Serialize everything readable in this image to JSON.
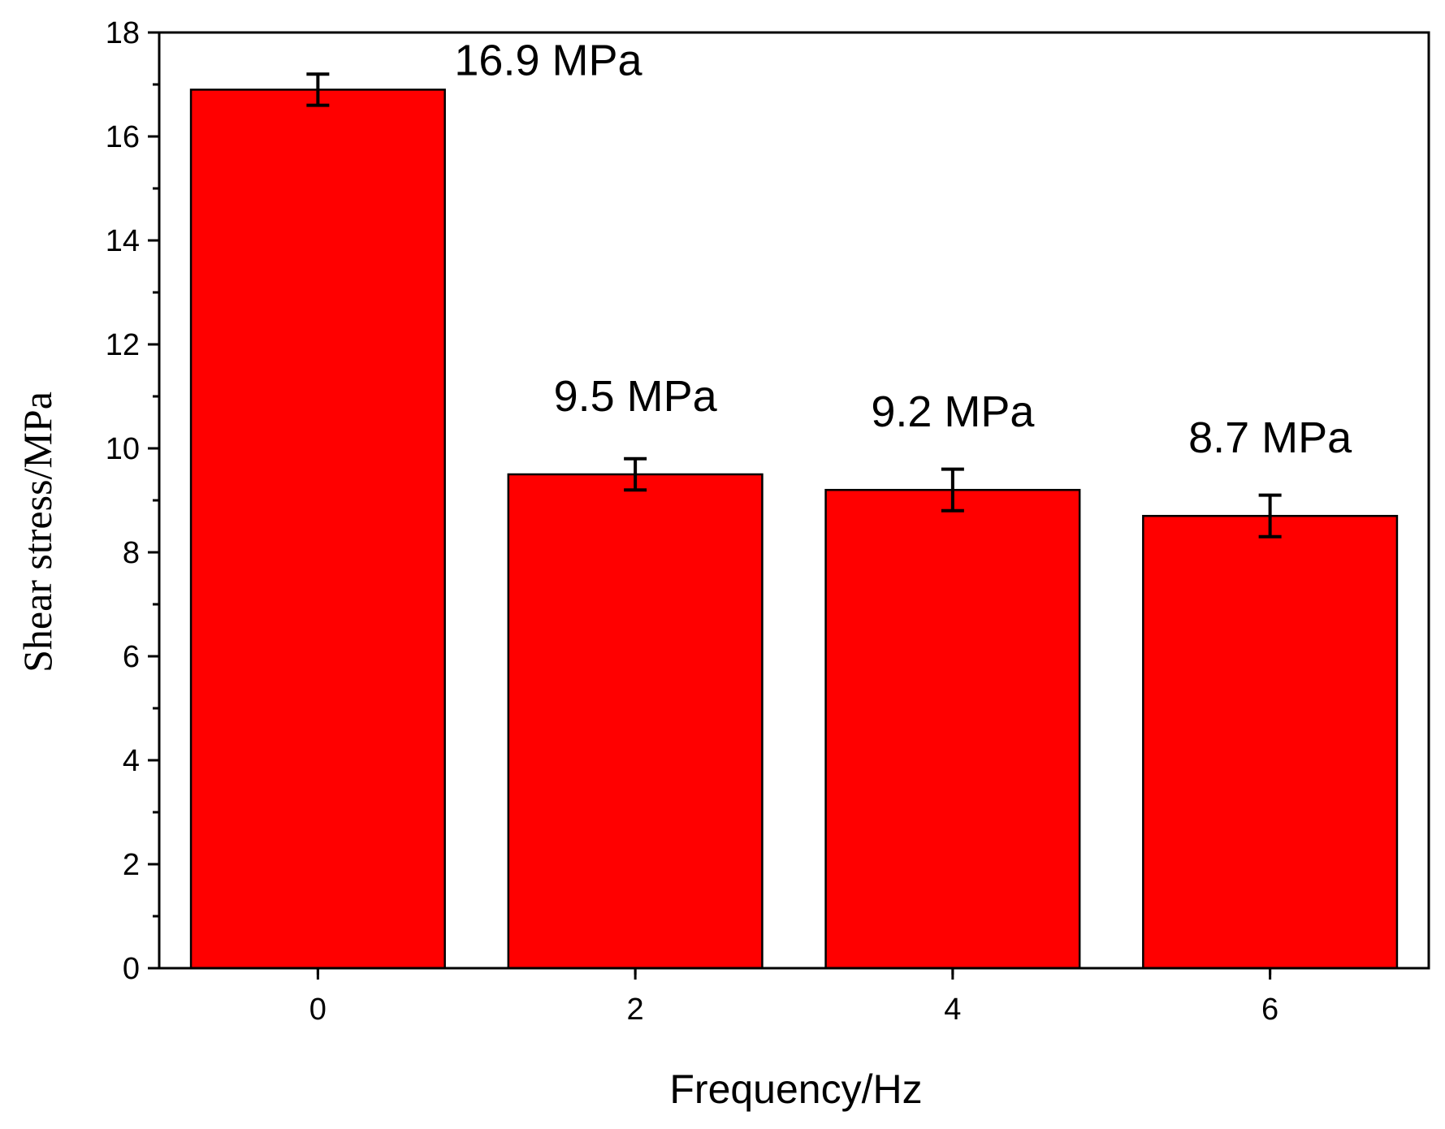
{
  "chart_data": {
    "type": "bar",
    "categories": [
      "0",
      "2",
      "4",
      "6"
    ],
    "x": [
      0,
      2,
      4,
      6
    ],
    "values": [
      16.9,
      9.5,
      9.2,
      8.7
    ],
    "errors": [
      0.3,
      0.3,
      0.4,
      0.4
    ],
    "data_labels": [
      "16.9 MPa",
      "9.5 MPa",
      "9.2 MPa",
      "8.7 MPa"
    ],
    "xlabel": "Frequency/Hz",
    "ylabel": "Shear stress/MPa",
    "xlim": [
      -1,
      7
    ],
    "ylim": [
      0,
      18
    ],
    "yticks": [
      0,
      2,
      4,
      6,
      8,
      10,
      12,
      14,
      16,
      18
    ],
    "xticks": [
      0,
      2,
      4,
      6
    ],
    "bar_width": 1.6,
    "grid": false,
    "legend": "none",
    "colors": {
      "bar_fill": "#ff0000",
      "bar_stroke": "#000000",
      "axis": "#000000"
    }
  }
}
